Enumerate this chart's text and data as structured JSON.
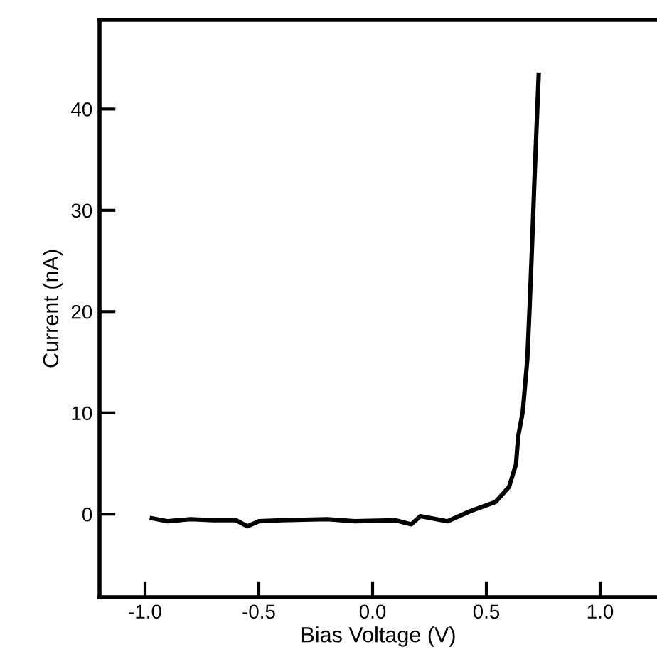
{
  "chart_data": {
    "type": "line",
    "xlabel": "Bias Voltage (V)",
    "ylabel": "Current (nA)",
    "series": [
      {
        "color": "#000000",
        "x": [
          -0.97,
          -0.9,
          -0.8,
          -0.7,
          -0.6,
          -0.55,
          -0.5,
          -0.4,
          -0.2,
          -0.08,
          0.1,
          0.17,
          0.21,
          0.33,
          0.43,
          0.54,
          0.6,
          0.63,
          0.64,
          0.66,
          0.68,
          0.69,
          0.7,
          0.71,
          0.72,
          0.73
        ],
        "values": [
          -0.4,
          -0.7,
          -0.5,
          -0.6,
          -0.6,
          -1.2,
          -0.7,
          -0.6,
          -0.5,
          -0.7,
          -0.6,
          -1.0,
          -0.2,
          -0.7,
          0.3,
          1.2,
          2.7,
          4.9,
          7.7,
          10.1,
          15.3,
          20.4,
          26.0,
          32.2,
          37.8,
          43.4
        ]
      }
    ],
    "xlim": [
      -1.2,
      1.25
    ],
    "ylim": [
      -8.2,
      48.8
    ],
    "xticks": [
      {
        "value": -1.0,
        "label": "-1.0"
      },
      {
        "value": -0.5,
        "label": "-0.5"
      },
      {
        "value": 0.0,
        "label": "0.0"
      },
      {
        "value": 0.5,
        "label": "0.5"
      },
      {
        "value": 1.0,
        "label": "1.0"
      }
    ],
    "yticks": [
      0,
      10,
      20,
      30,
      40
    ],
    "grid": false,
    "legend": false,
    "marker": "none",
    "line_style": "solid"
  }
}
